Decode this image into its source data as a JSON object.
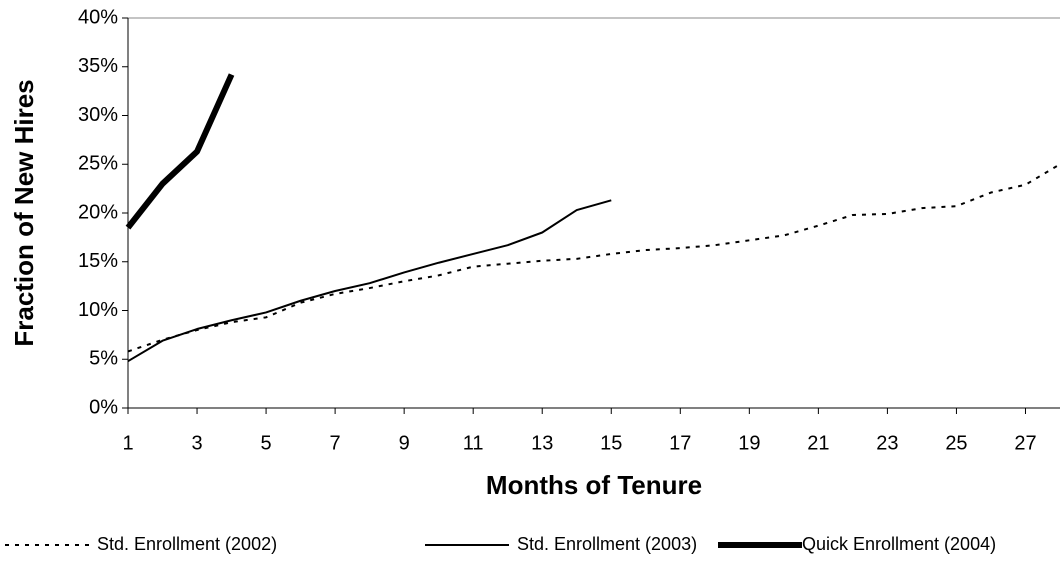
{
  "chart_data": {
    "type": "line",
    "xlabel": "Months of Tenure",
    "ylabel": "Fraction of New Hires",
    "x": [
      1,
      2,
      3,
      4,
      5,
      6,
      7,
      8,
      9,
      10,
      11,
      12,
      13,
      14,
      15,
      16,
      17,
      18,
      19,
      20,
      21,
      22,
      23,
      24,
      25,
      26,
      27,
      28
    ],
    "xlim": [
      1,
      28
    ],
    "xticks": [
      1,
      3,
      5,
      7,
      9,
      11,
      13,
      15,
      17,
      19,
      21,
      23,
      25,
      27
    ],
    "ylim": [
      0,
      40
    ],
    "yticks": [
      {
        "value": 0,
        "label": "0%"
      },
      {
        "value": 5,
        "label": "5%"
      },
      {
        "value": 10,
        "label": "10%"
      },
      {
        "value": 15,
        "label": "15%"
      },
      {
        "value": 20,
        "label": "20%"
      },
      {
        "value": 25,
        "label": "25%"
      },
      {
        "value": 30,
        "label": "30%"
      },
      {
        "value": 35,
        "label": "35%"
      },
      {
        "value": 40,
        "label": "40%"
      }
    ],
    "series": [
      {
        "name": "Std. Enrollment (2002)",
        "color": "#000000",
        "dash": "4 6",
        "width": 2,
        "values": [
          5.8,
          7.0,
          8.0,
          8.8,
          9.3,
          10.8,
          11.7,
          12.3,
          13.0,
          13.6,
          14.5,
          14.8,
          15.1,
          15.3,
          15.8,
          16.2,
          16.4,
          16.7,
          17.2,
          17.7,
          18.7,
          19.8,
          19.9,
          20.5,
          20.7,
          22.1,
          22.9,
          25.0
        ]
      },
      {
        "name": "Std. Enrollment (2003)",
        "color": "#000000",
        "dash": "none",
        "width": 2,
        "values": [
          4.8,
          6.9,
          8.1,
          9.0,
          9.8,
          11.0,
          12.0,
          12.8,
          13.9,
          14.9,
          15.8,
          16.7,
          18.0,
          20.3,
          21.3,
          null,
          null,
          null,
          null,
          null,
          null,
          null,
          null,
          null,
          null,
          null,
          null,
          null
        ]
      },
      {
        "name": "Quick Enrollment (2004)",
        "color": "#000000",
        "dash": "none",
        "width": 6,
        "values": [
          18.5,
          23.0,
          26.3,
          34.2,
          null,
          null,
          null,
          null,
          null,
          null,
          null,
          null,
          null,
          null,
          null,
          null,
          null,
          null,
          null,
          null,
          null,
          null,
          null,
          null,
          null,
          null,
          null,
          null
        ]
      }
    ]
  }
}
